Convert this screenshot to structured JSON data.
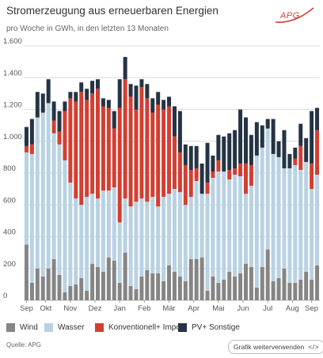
{
  "header": {
    "title": "Stromerzeugung aus erneuerbaren Energien",
    "subtitle": "pro Woche in GWh, in den letzten 13 Monaten",
    "logo_text": "APG"
  },
  "footer": {
    "source": "Quelle: APG",
    "reuse_label": "Grafik weiterverwenden",
    "reuse_code_icon": "</>"
  },
  "colors": {
    "Wind": "#858585",
    "Wasser": "#b9d2e3",
    "Konventionell+ Import": "#d23f32",
    "PV+ Sonstige": "#243444",
    "grid": "#dcdcdc",
    "logo": "#d23f32"
  },
  "chart_data": {
    "type": "bar",
    "stacked": true,
    "title": "Stromerzeugung aus erneuerbaren Energien",
    "subtitle": "pro Woche in GWh, in den letzten 13 Monaten",
    "ylim": [
      0,
      1600
    ],
    "yticks": [
      0,
      200,
      400,
      600,
      800,
      "1.000",
      "1.200",
      "1.400",
      "1.600"
    ],
    "month_labels": [
      {
        "label": "Sep",
        "week": 0
      },
      {
        "label": "Okt",
        "week": 3.5
      },
      {
        "label": "Nov",
        "week": 8
      },
      {
        "label": "Dez",
        "week": 12.5
      },
      {
        "label": "Jan",
        "week": 17
      },
      {
        "label": "Feb",
        "week": 21.5
      },
      {
        "label": "Mär",
        "week": 26
      },
      {
        "label": "Apr",
        "week": 30.5
      },
      {
        "label": "Mai",
        "week": 35
      },
      {
        "label": "Jun",
        "week": 39.5
      },
      {
        "label": "Jul",
        "week": 44
      },
      {
        "label": "Aug",
        "week": 48.5
      },
      {
        "label": "Sep",
        "week": 52
      }
    ],
    "legend_position": "bottom",
    "grid": true,
    "series": [
      {
        "name": "Wind",
        "values": [
          350,
          110,
          200,
          150,
          200,
          260,
          160,
          50,
          90,
          100,
          140,
          60,
          230,
          210,
          180,
          270,
          250,
          110,
          300,
          90,
          70,
          150,
          190,
          170,
          170,
          120,
          220,
          180,
          150,
          120,
          260,
          260,
          270,
          60,
          150,
          110,
          130,
          180,
          150,
          170,
          230,
          210,
          80,
          210,
          320,
          120,
          140,
          200,
          110,
          110,
          130,
          180,
          130,
          220
        ]
      },
      {
        "name": "Wasser",
        "values": [
          580,
          810,
          950,
          1030,
          1040,
          790,
          820,
          830,
          650,
          540,
          460,
          590,
          440,
          430,
          510,
          420,
          460,
          380,
          340,
          500,
          550,
          490,
          430,
          480,
          420,
          530,
          450,
          520,
          530,
          480,
          390,
          490,
          400,
          610,
          620,
          700,
          680,
          580,
          640,
          610,
          440,
          510,
          830,
          750,
          760,
          800,
          760,
          630,
          720,
          740,
          690,
          690,
          570,
          570
        ]
      },
      {
        "name": "Konventionell+ Import",
        "values": [
          40,
          60,
          0,
          0,
          0,
          80,
          80,
          310,
          530,
          610,
          710,
          610,
          630,
          690,
          530,
          520,
          370,
          720,
          750,
          690,
          580,
          700,
          650,
          530,
          640,
          550,
          550,
          330,
          250,
          250,
          170,
          80,
          0,
          70,
          40,
          70,
          0,
          60,
          40,
          80,
          190,
          130,
          0,
          0,
          0,
          0,
          0,
          0,
          0,
          40,
          150,
          0,
          160,
          280
        ]
      },
      {
        "name": "PV+ Sonstige",
        "values": [
          120,
          160,
          160,
          120,
          150,
          120,
          130,
          60,
          40,
          60,
          60,
          70,
          80,
          60,
          50,
          50,
          110,
          180,
          140,
          80,
          150,
          50,
          90,
          90,
          80,
          60,
          60,
          190,
          260,
          130,
          150,
          140,
          190,
          250,
          100,
          160,
          220,
          230,
          240,
          340,
          290,
          190,
          210,
          140,
          60,
          220,
          100,
          240,
          90,
          70,
          140,
          150,
          330,
          140
        ]
      }
    ]
  }
}
